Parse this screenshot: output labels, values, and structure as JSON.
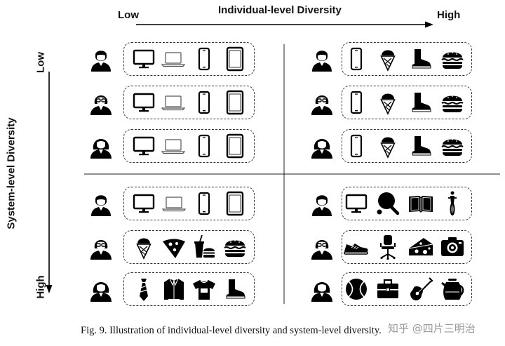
{
  "axes": {
    "x_title": "Individual-level Diversity",
    "x_low": "Low",
    "x_high": "High",
    "y_title": "System-level Diversity",
    "y_low": "Low",
    "y_high": "High"
  },
  "caption": "Fig. 9.  Illustration of individual-level diversity and system-level diversity.",
  "watermark": "知乎 @四片三明治",
  "quadrants": [
    {
      "id": "top-left",
      "rows": [
        {
          "user": "man-user-icon",
          "items": [
            "monitor-icon",
            "laptop-icon",
            "smartphone-icon",
            "tablet-icon"
          ]
        },
        {
          "user": "woman-glasses-user-icon",
          "items": [
            "monitor-icon",
            "laptop-icon",
            "smartphone-icon",
            "tablet-icon"
          ]
        },
        {
          "user": "woman-user-icon",
          "items": [
            "monitor-icon",
            "laptop-icon",
            "smartphone-icon",
            "tablet-icon"
          ]
        }
      ]
    },
    {
      "id": "top-right",
      "rows": [
        {
          "user": "man-user-icon",
          "items": [
            "smartphone-icon",
            "ice-cream-icon",
            "boot-icon",
            "burger-icon"
          ]
        },
        {
          "user": "woman-glasses-user-icon",
          "items": [
            "smartphone-icon",
            "ice-cream-icon",
            "boot-icon",
            "burger-icon"
          ]
        },
        {
          "user": "woman-user-icon",
          "items": [
            "smartphone-icon",
            "ice-cream-icon",
            "boot-icon",
            "burger-icon"
          ]
        }
      ]
    },
    {
      "id": "bottom-left",
      "rows": [
        {
          "user": "man-user-icon",
          "items": [
            "monitor-icon",
            "laptop-icon",
            "smartphone-icon",
            "tablet-icon"
          ]
        },
        {
          "user": "woman-glasses-user-icon",
          "items": [
            "ice-cream-icon",
            "pizza-icon",
            "fast-food-icon",
            "burger-icon"
          ]
        },
        {
          "user": "woman-user-icon",
          "items": [
            "tie-icon",
            "jacket-icon",
            "tshirt-icon",
            "boot-icon"
          ]
        }
      ]
    },
    {
      "id": "bottom-right",
      "rows": [
        {
          "user": "man-user-icon",
          "items": [
            "monitor-icon",
            "ping-pong-icon",
            "book-icon",
            "cyclist-icon"
          ]
        },
        {
          "user": "woman-glasses-user-icon",
          "items": [
            "sneaker-icon",
            "office-chair-icon",
            "cheese-icon",
            "camera-icon"
          ]
        },
        {
          "user": "woman-user-icon",
          "items": [
            "tennis-ball-icon",
            "briefcase-icon",
            "guitar-icon",
            "kettle-icon"
          ]
        }
      ]
    }
  ]
}
